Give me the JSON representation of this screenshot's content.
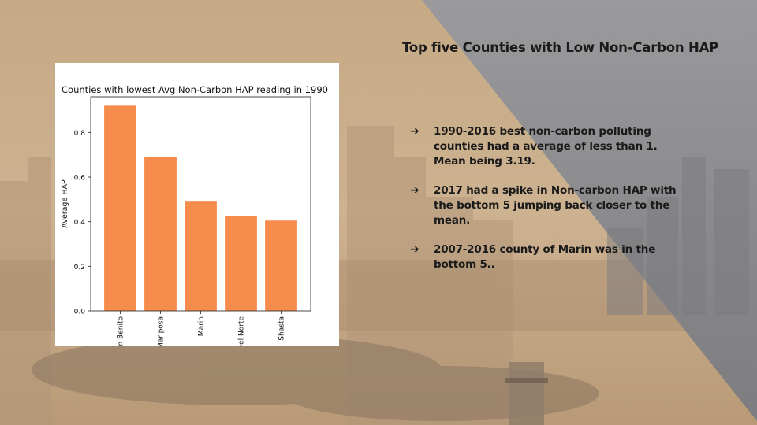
{
  "slide": {
    "title": "Top five Counties with Low Non-Carbon HAP",
    "bullets": [
      {
        "arrow": "➔",
        "text": "1990-2016 best non-carbon polluting counties had a average of less than 1. Mean being 3.19."
      },
      {
        "arrow": "➔",
        "text": "2017 had a spike in Non-carbon HAP with the bottom 5 jumping back closer to the mean."
      },
      {
        "arrow": "➔",
        "text": "2007-2016 county of Marin was in the bottom 5.."
      }
    ]
  },
  "colors": {
    "bar": "#f58c4c",
    "background_left": "#c9ad8a",
    "background_right": "#8e8e90"
  },
  "chart_data": {
    "type": "bar",
    "title": "Counties with lowest Avg Non-Carbon HAP reading in 1990",
    "xlabel": "",
    "ylabel": "Average HAP",
    "categories": [
      "San Benito",
      "Mariposa",
      "Marin",
      "Del Norte",
      "Shasta"
    ],
    "values": [
      0.92,
      0.69,
      0.49,
      0.425,
      0.405
    ],
    "ylim": [
      0,
      0.96
    ],
    "yticks": [
      0.0,
      0.2,
      0.4,
      0.6,
      0.8
    ],
    "ytick_labels": [
      "0.0",
      "0.2",
      "0.4",
      "0.6",
      "0.8"
    ],
    "grid": false,
    "legend": "none"
  }
}
